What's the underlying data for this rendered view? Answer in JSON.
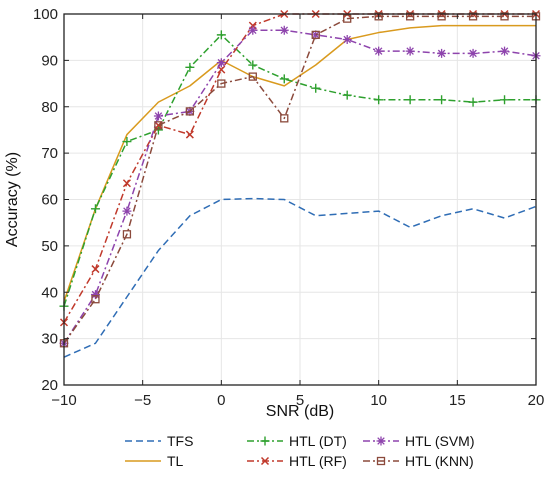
{
  "chart_data": {
    "type": "line",
    "title": "",
    "xlabel": "SNR (dB)",
    "ylabel": "Accuracy (%)",
    "xlim": [
      -10,
      20
    ],
    "ylim": [
      20,
      100
    ],
    "xticks": [
      -10,
      -5,
      0,
      5,
      10,
      15,
      20
    ],
    "yticks": [
      20,
      30,
      40,
      50,
      60,
      70,
      80,
      90,
      100
    ],
    "grid": true,
    "legend_position": "bottom",
    "x": [
      -10,
      -8,
      -6,
      -4,
      -2,
      0,
      2,
      4,
      6,
      8,
      10,
      12,
      14,
      16,
      18,
      20
    ],
    "series": [
      {
        "name": "TFS",
        "color": "#2f6db5",
        "dash": "7,4",
        "marker": "none",
        "values": [
          26,
          29,
          39,
          49,
          56.5,
          60,
          60.2,
          60,
          56.5,
          57,
          57.5,
          54,
          56.5,
          58,
          56,
          58.5
        ]
      },
      {
        "name": "TL",
        "color": "#d99a1e",
        "dash": "",
        "marker": "none",
        "values": [
          38,
          58,
          74,
          81,
          84.5,
          90,
          86.5,
          84.5,
          89,
          94.5,
          96,
          97,
          97.5,
          97.5,
          97.5,
          97.5
        ]
      },
      {
        "name": "HTL (DT)",
        "color": "#2ea02e",
        "dash": "7,3,2,3",
        "marker": "plus",
        "values": [
          37,
          58,
          72.5,
          75,
          88.5,
          95.5,
          89,
          86,
          84,
          82.5,
          81.5,
          81.5,
          81.5,
          81,
          81.5,
          81.5
        ]
      },
      {
        "name": "HTL (RF)",
        "color": "#c0392b",
        "dash": "7,3,2,3",
        "marker": "x",
        "values": [
          33.5,
          45,
          63.5,
          76,
          74,
          88,
          97.5,
          100,
          100,
          100,
          100,
          100,
          100,
          100,
          100,
          100
        ]
      },
      {
        "name": "HTL (SVM)",
        "color": "#8e44ad",
        "dash": "7,3,2,3",
        "marker": "star",
        "values": [
          29,
          39.5,
          57.5,
          78,
          79,
          89.5,
          96.5,
          96.5,
          95.5,
          94.5,
          92,
          92,
          91.5,
          91.5,
          92,
          91
        ]
      },
      {
        "name": "HTL (KNN)",
        "color": "#8b4a3c",
        "dash": "7,3,2,3",
        "marker": "square",
        "values": [
          29,
          38.5,
          52.5,
          76,
          79,
          85,
          86.5,
          77.5,
          95.5,
          99,
          99.5,
          99.5,
          99.5,
          99.5,
          99.5,
          99.5
        ]
      }
    ],
    "legend_layout": [
      [
        "TFS",
        "HTL (DT)",
        "HTL (SVM)"
      ],
      [
        "TL",
        "HTL (RF)",
        "HTL (KNN)"
      ]
    ]
  }
}
